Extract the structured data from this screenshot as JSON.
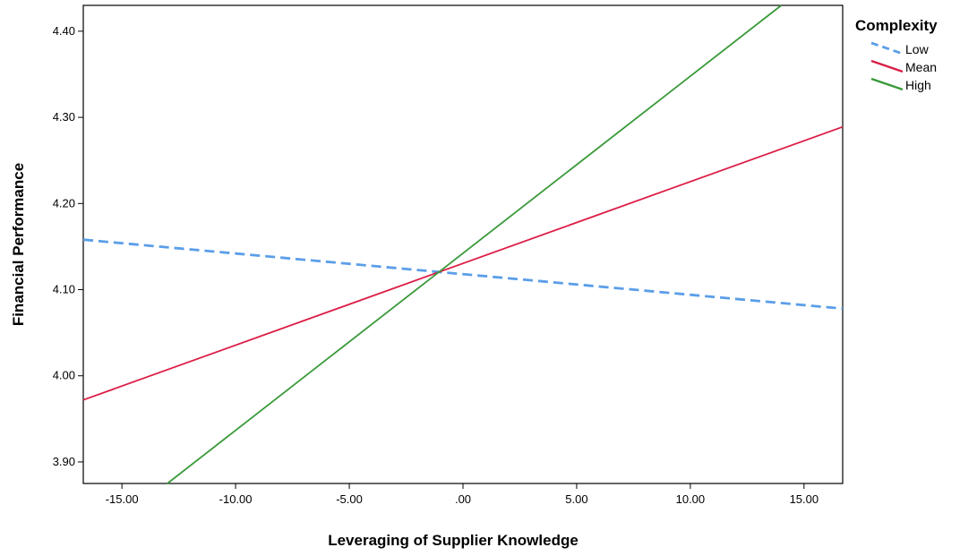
{
  "chart_data": {
    "type": "line",
    "xlabel": "Leveraging of Supplier Knowledge",
    "ylabel": "Financial Performance",
    "xlim": [
      -16.7,
      16.7
    ],
    "ylim": [
      3.875,
      4.43
    ],
    "xticks": [
      -15,
      -10,
      -5,
      0,
      5,
      10,
      15
    ],
    "xtick_labels": [
      "-15.00",
      "-10.00",
      "-5.00",
      ".00",
      "5.00",
      "10.00",
      "15.00"
    ],
    "yticks": [
      3.9,
      4.0,
      4.1,
      4.2,
      4.3,
      4.4
    ],
    "ytick_labels": [
      "3.90",
      "4.00",
      "4.10",
      "4.20",
      "4.30",
      "4.40"
    ],
    "grid": false,
    "legend": {
      "title": "Complexity",
      "placement": "right"
    },
    "series": [
      {
        "name": "Low",
        "x": [
          -16.7,
          16.7
        ],
        "y": [
          4.158,
          4.078
        ],
        "color": "#5b9ee8",
        "style": "dashed"
      },
      {
        "name": "Mean",
        "x": [
          -16.7,
          16.7
        ],
        "y": [
          3.972,
          4.289
        ],
        "color": "#dc1e46",
        "style": "solid"
      },
      {
        "name": "High",
        "x": [
          -13.0,
          14.0
        ],
        "y": [
          3.875,
          4.43
        ],
        "color": "#3a9a3a",
        "style": "solid"
      }
    ]
  }
}
